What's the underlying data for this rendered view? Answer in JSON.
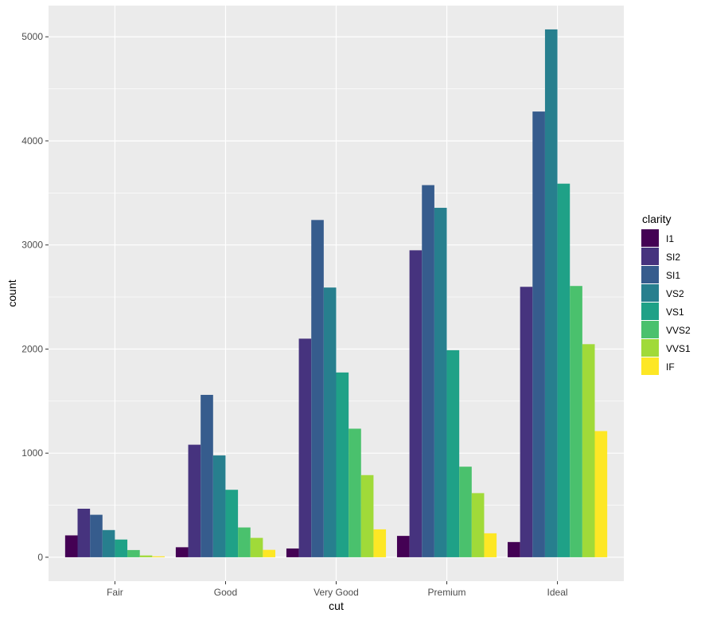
{
  "chart_data": {
    "type": "bar",
    "title": "",
    "xlabel": "cut",
    "ylabel": "count",
    "ylim": [
      -230,
      5300
    ],
    "yticks": [
      0,
      1000,
      2000,
      3000,
      4000,
      5000
    ],
    "categories": [
      "Fair",
      "Good",
      "Very Good",
      "Premium",
      "Ideal"
    ],
    "legend": {
      "title": "clarity",
      "position": "right"
    },
    "series": [
      {
        "name": "I1",
        "color": "#440154",
        "values": [
          210,
          96,
          84,
          205,
          146
        ]
      },
      {
        "name": "SI2",
        "color": "#46337E",
        "values": [
          466,
          1081,
          2100,
          2949,
          2598
        ]
      },
      {
        "name": "SI1",
        "color": "#365C8D",
        "values": [
          408,
          1560,
          3240,
          3575,
          4282
        ]
      },
      {
        "name": "VS2",
        "color": "#277F8E",
        "values": [
          261,
          978,
          2591,
          3357,
          5071
        ]
      },
      {
        "name": "VS1",
        "color": "#1FA187",
        "values": [
          170,
          648,
          1775,
          1989,
          3589
        ]
      },
      {
        "name": "VVS2",
        "color": "#4AC16D",
        "values": [
          69,
          286,
          1235,
          870,
          2606
        ]
      },
      {
        "name": "VVS1",
        "color": "#A0DA39",
        "values": [
          17,
          186,
          789,
          616,
          2047
        ]
      },
      {
        "name": "IF",
        "color": "#FDE725",
        "values": [
          9,
          71,
          268,
          230,
          1212
        ]
      }
    ]
  }
}
